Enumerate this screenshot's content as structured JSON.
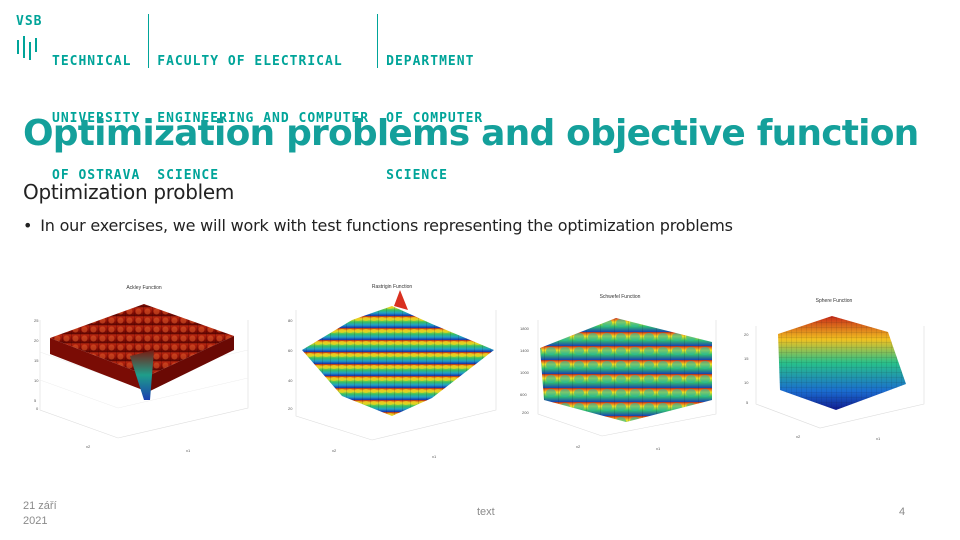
{
  "header": {
    "university": [
      "VSB",
      "TECHNICAL",
      "UNIVERSITY",
      "OF OSTRAVA"
    ],
    "faculty": [
      "FACULTY OF ELECTRICAL",
      "ENGINEERING AND COMPUTER",
      "SCIENCE"
    ],
    "department": [
      "DEPARTMENT",
      "OF COMPUTER",
      "SCIENCE"
    ],
    "brand_color": "#00a499"
  },
  "slide": {
    "title": "Optimization problems and objective function",
    "subtitle": "Optimization problem",
    "bullet": "In our exercises, we will work with test functions representing the optimization problems"
  },
  "figures": [
    {
      "title": "Ackley Function",
      "icon": "surface-plot"
    },
    {
      "title": "Rastrigin Function",
      "icon": "surface-plot"
    },
    {
      "title": "Schwefel Function",
      "icon": "surface-plot"
    },
    {
      "title": "Sphere Function",
      "icon": "surface-plot"
    }
  ],
  "footer": {
    "date_line1": "21 září",
    "date_line2": "2021",
    "text": "text",
    "page": "4"
  }
}
